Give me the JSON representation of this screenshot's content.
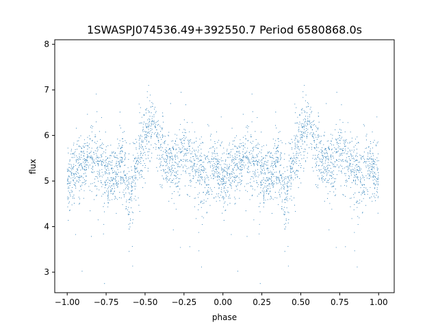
{
  "chart_data": {
    "type": "scatter",
    "title": "1SWASPJ074536.49+392550.7 Period 6580868.0s",
    "xlabel": "phase",
    "ylabel": "flux",
    "xlim": [
      -1.08,
      1.1
    ],
    "ylim": [
      2.55,
      8.1
    ],
    "xticks": [
      -1.0,
      -0.75,
      -0.5,
      -0.25,
      0.0,
      0.25,
      0.5,
      0.75,
      1.0
    ],
    "xtick_labels": [
      "−1.00",
      "−0.75",
      "−0.50",
      "−0.25",
      "0.00",
      "0.25",
      "0.50",
      "0.75",
      "1.00"
    ],
    "yticks": [
      3,
      4,
      5,
      6,
      7,
      8
    ],
    "ytick_labels": [
      "3",
      "4",
      "5",
      "6",
      "7",
      "8"
    ],
    "grid": false,
    "legend": "none",
    "marker_color": "#1f77b4",
    "series": [
      {
        "x_range": [
          -1.0,
          1.0
        ],
        "profile": [
          {
            "phase": 0.0,
            "flux": 5.0
          },
          {
            "phase": 0.05,
            "flux": 5.3
          },
          {
            "phase": 0.1,
            "flux": 5.2
          },
          {
            "phase": 0.15,
            "flux": 5.6
          },
          {
            "phase": 0.2,
            "flux": 5.4
          },
          {
            "phase": 0.25,
            "flux": 5.1
          },
          {
            "phase": 0.3,
            "flux": 4.9
          },
          {
            "phase": 0.35,
            "flux": 5.5
          },
          {
            "phase": 0.4,
            "flux": 4.6
          },
          {
            "phase": 0.45,
            "flux": 5.4
          },
          {
            "phase": 0.5,
            "flux": 6.0
          },
          {
            "phase": 0.55,
            "flux": 6.3
          },
          {
            "phase": 0.6,
            "flux": 5.6
          },
          {
            "phase": 0.65,
            "flux": 5.4
          },
          {
            "phase": 0.7,
            "flux": 5.3
          },
          {
            "phase": 0.75,
            "flux": 5.8
          },
          {
            "phase": 0.8,
            "flux": 5.4
          },
          {
            "phase": 0.85,
            "flux": 5.2
          },
          {
            "phase": 0.9,
            "flux": 5.0
          },
          {
            "phase": 0.95,
            "flux": 5.3
          },
          {
            "phase": 1.0,
            "flux": 5.0
          }
        ],
        "scatter_sd": 0.35
      }
    ]
  }
}
